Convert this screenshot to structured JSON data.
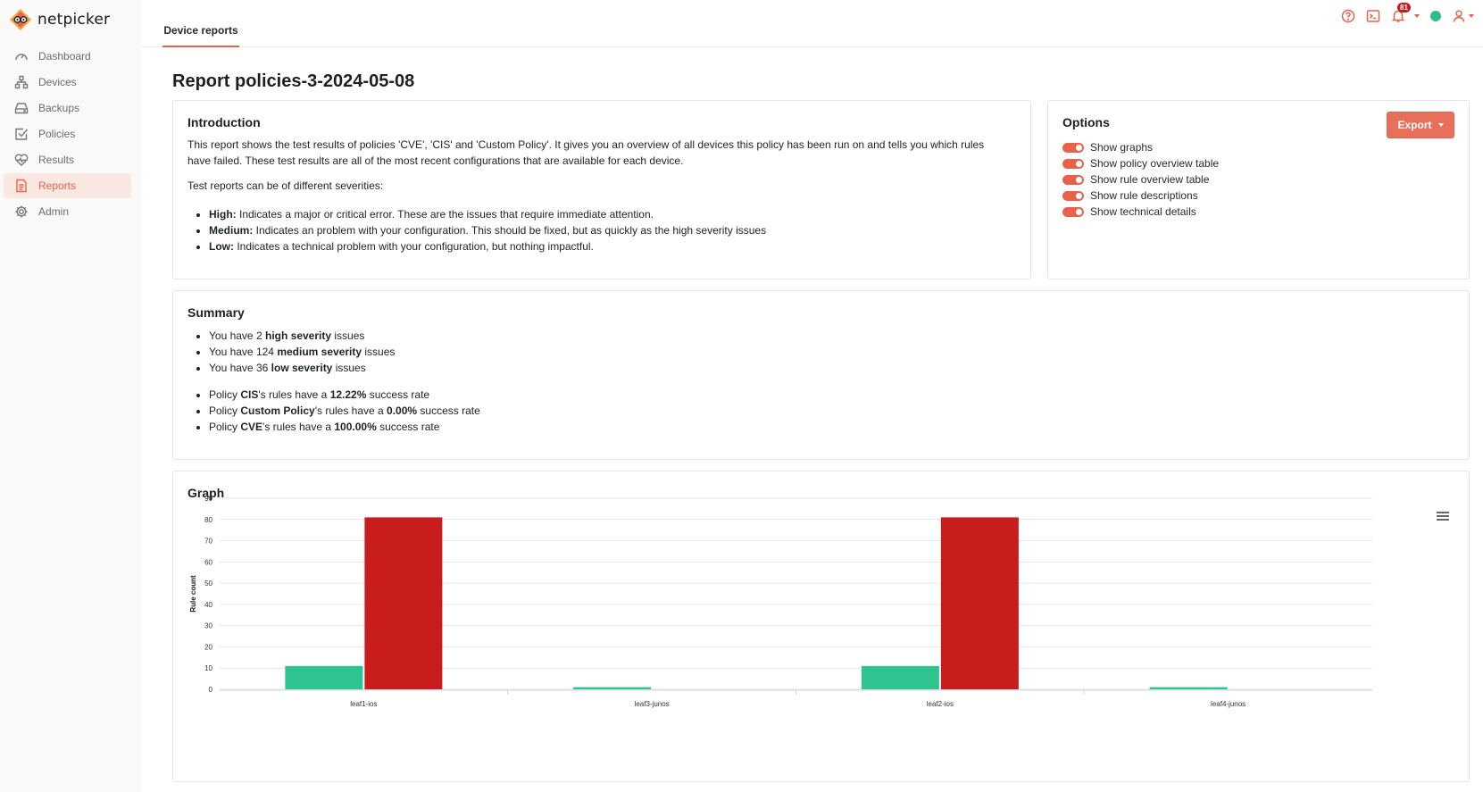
{
  "app": {
    "name": "netpicker"
  },
  "sidebar": {
    "items": [
      {
        "label": "Dashboard",
        "icon": "gauge-icon"
      },
      {
        "label": "Devices",
        "icon": "network-icon"
      },
      {
        "label": "Backups",
        "icon": "hard-drive-icon"
      },
      {
        "label": "Policies",
        "icon": "checklist-icon"
      },
      {
        "label": "Results",
        "icon": "heartbeat-icon"
      },
      {
        "label": "Reports",
        "icon": "document-icon",
        "active": true
      },
      {
        "label": "Admin",
        "icon": "gear-icon"
      }
    ]
  },
  "header": {
    "tab": "Device reports",
    "notifications_count": "81",
    "status_color": "#2dbd85",
    "accent_color": "#e8624a"
  },
  "page": {
    "title": "Report policies-3-2024-05-08"
  },
  "intro": {
    "title": "Introduction",
    "paragraph": "This report shows the test results of policies 'CVE', 'CIS' and 'Custom Policy'. It gives you an overview of all devices this policy has been run on and tells you which rules have failed. These test results are all of the most recent configurations that are available for each device.",
    "severities_intro": "Test reports can be of different severities:",
    "severities": [
      {
        "name": "High:",
        "text": " Indicates a major or critical error. These are the issues that require immediate attention."
      },
      {
        "name": "Medium:",
        "text": " Indicates an problem with your configuration. This should be fixed, but as quickly as the high severity issues"
      },
      {
        "name": "Low:",
        "text": " Indicates a technical problem with your configuration, but nothing impactful."
      }
    ]
  },
  "options": {
    "title": "Options",
    "export_label": "Export",
    "items": [
      {
        "label": "Show graphs",
        "on": true
      },
      {
        "label": "Show policy overview table",
        "on": true
      },
      {
        "label": "Show rule overview table",
        "on": true
      },
      {
        "label": "Show rule descriptions",
        "on": true
      },
      {
        "label": "Show technical details",
        "on": true
      }
    ]
  },
  "summary": {
    "title": "Summary",
    "issues": [
      {
        "prefix": "You have ",
        "count": "2",
        "bold": "high severity",
        "suffix": " issues"
      },
      {
        "prefix": "You have ",
        "count": "124",
        "bold": "medium severity",
        "suffix": " issues"
      },
      {
        "prefix": "You have ",
        "count": "36",
        "bold": "low severity",
        "suffix": " issues"
      }
    ],
    "policies": [
      {
        "prefix": "Policy ",
        "name": "CIS",
        "mid": "'s rules have a ",
        "rate": "12.22%",
        "suffix": " success rate"
      },
      {
        "prefix": "Policy ",
        "name": "Custom Policy",
        "mid": "'s rules have a ",
        "rate": "0.00%",
        "suffix": " success rate"
      },
      {
        "prefix": "Policy ",
        "name": "CVE",
        "mid": "'s rules have a ",
        "rate": "100.00%",
        "suffix": " success rate"
      }
    ]
  },
  "graph": {
    "title": "Graph",
    "menu_icon": "hamburger-menu-icon"
  },
  "chart_data": {
    "type": "bar",
    "title": "",
    "xlabel": "",
    "ylabel": "Rule count",
    "ylim": [
      0,
      90
    ],
    "yticks": [
      0,
      10,
      20,
      30,
      40,
      50,
      60,
      70,
      80,
      90
    ],
    "categories": [
      "leaf1-ios",
      "leaf3-junos",
      "leaf2-ios",
      "leaf4-junos"
    ],
    "grid": true,
    "legend": "none",
    "series": [
      {
        "values": [
          11,
          1,
          11,
          1
        ],
        "color": "#2fc48f"
      },
      {
        "values": [
          81,
          0,
          81,
          0
        ],
        "color": "#c91d1d"
      }
    ]
  }
}
